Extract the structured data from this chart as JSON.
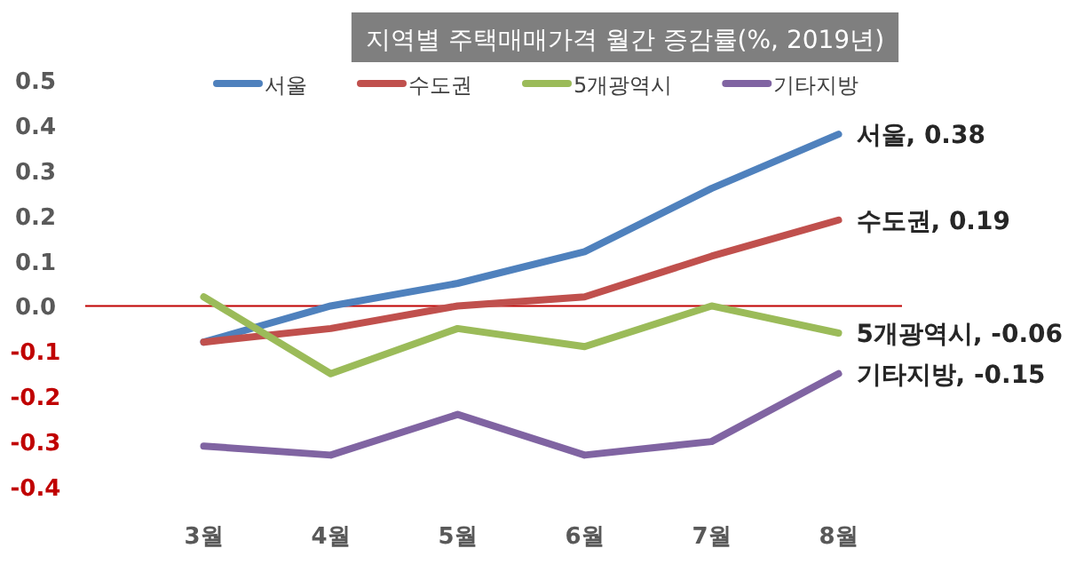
{
  "chart_data": {
    "type": "line",
    "title": "지역별 주택매매가격 월간 증감률(%, 2019년)",
    "categories": [
      "3월",
      "4월",
      "5월",
      "6월",
      "7월",
      "8월"
    ],
    "series": [
      {
        "name": "서울",
        "color": "#4f81bd",
        "values": [
          -0.08,
          0.0,
          0.05,
          0.12,
          0.26,
          0.38
        ]
      },
      {
        "name": "수도권",
        "color": "#c0504d",
        "values": [
          -0.08,
          -0.05,
          0.0,
          0.02,
          0.11,
          0.19
        ]
      },
      {
        "name": "5개광역시",
        "color": "#9bbb59",
        "values": [
          0.02,
          -0.15,
          -0.05,
          -0.09,
          0.0,
          -0.06
        ]
      },
      {
        "name": "기타지방",
        "color": "#8064a2",
        "values": [
          -0.31,
          -0.33,
          -0.24,
          -0.33,
          -0.3,
          -0.15
        ]
      }
    ],
    "ylim": [
      -0.4,
      0.5
    ],
    "yticks": [
      0.5,
      0.4,
      0.3,
      0.2,
      0.1,
      {
        "value": 0,
        "label": "0.0"
      },
      -0.1,
      -0.2,
      -0.3,
      -0.4
    ],
    "ref_lines": [
      {
        "axis": "y",
        "value": 0,
        "color": "#c00000"
      }
    ],
    "annotations": [
      {
        "text": "서울, 0.38",
        "x": "8월",
        "y": 0.38
      },
      {
        "text": "수도권, 0.19",
        "x": "8월",
        "y": 0.19
      },
      {
        "text": "5개광역시, -0.06",
        "x": "8월",
        "y": -0.06
      },
      {
        "text": "기타지방, -0.15",
        "x": "8월",
        "y": -0.15
      }
    ],
    "legend": "top",
    "grid": false,
    "marker": "none",
    "line_style": "solid"
  }
}
